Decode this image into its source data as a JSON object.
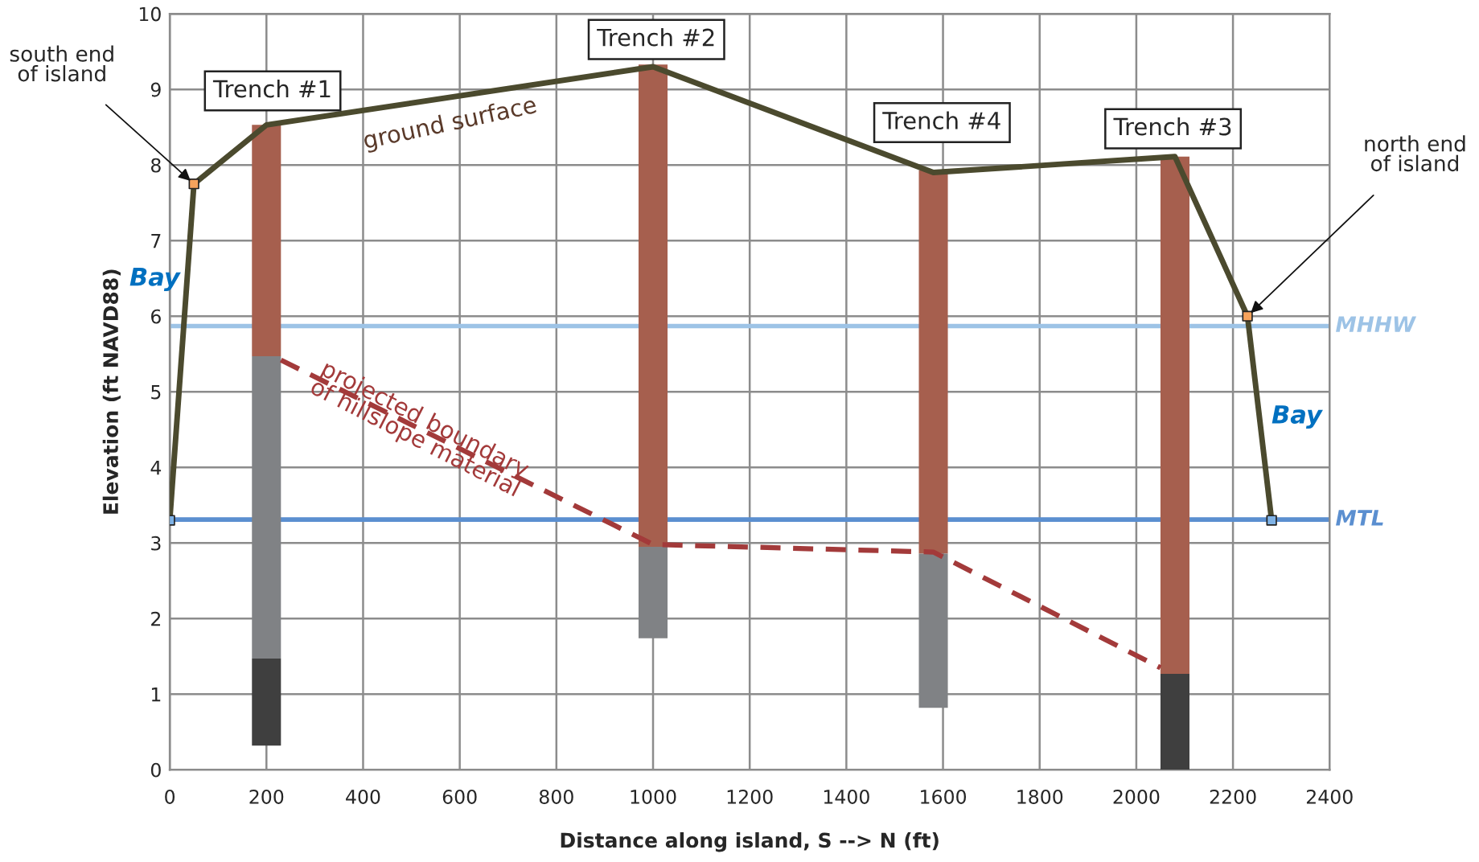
{
  "chart_data": {
    "type": "line",
    "xlabel": "Distance along island, S --> N (ft)",
    "ylabel": "Elevation (ft NAVD88)",
    "xlim": [
      0,
      2400
    ],
    "xticks": [
      0,
      200,
      400,
      600,
      800,
      1000,
      1200,
      1400,
      1600,
      1800,
      2000,
      2200,
      2400
    ],
    "ylim": [
      0,
      10
    ],
    "yticks": [
      0,
      1,
      2,
      3,
      4,
      5,
      6,
      7,
      8,
      9,
      10
    ],
    "grid": true,
    "series": [
      {
        "type": "bar",
        "color": "#a65f4e",
        "x": [
          200,
          1000,
          1580,
          2080
        ],
        "base": [
          5.47,
          2.95,
          2.86,
          1.27
        ],
        "values": [
          3.06,
          6.38,
          5.07,
          6.84
        ]
      },
      {
        "type": "bar",
        "color": "#808285",
        "x": [
          200,
          1000,
          1580
        ],
        "base": [
          1.47,
          1.74,
          0.82
        ],
        "values": [
          4.0,
          1.21,
          2.04
        ]
      },
      {
        "type": "bar",
        "color": "#3f3f3f",
        "x": [
          200,
          2080
        ],
        "base": [
          0.32,
          0
        ],
        "values": [
          1.15,
          1.27
        ]
      },
      {
        "color": "#4b4a2e",
        "line_style": "solid",
        "x": [
          0,
          50,
          200,
          1000,
          1580,
          2080,
          2230,
          2280
        ],
        "values": [
          3.3,
          7.75,
          8.53,
          9.3,
          7.9,
          8.11,
          6.0,
          3.3
        ]
      },
      {
        "color": "#a33a3a",
        "line_style": "dashed",
        "x": [
          230,
          1000,
          1580,
          2050
        ],
        "values": [
          5.42,
          2.98,
          2.88,
          1.35
        ]
      },
      {
        "type": "scatter",
        "marker": "square",
        "x": [
          0,
          50,
          2230,
          2280
        ],
        "values": [
          3.3,
          7.75,
          6.0,
          3.3
        ],
        "colors": [
          "#7fb2e5",
          "#f7a35c",
          "#f7a35c",
          "#7fb2e5"
        ]
      }
    ],
    "ref_lines": [
      {
        "axis": "y",
        "value": 5.87,
        "label": "MHHW",
        "color": "#9dc3e6"
      },
      {
        "axis": "y",
        "value": 3.31,
        "label": "MTL",
        "color": "#5b8fd0"
      }
    ],
    "annotations": [
      "Trench #1",
      "Trench #2",
      "Trench #4",
      "Trench #3",
      "ground surface",
      {
        "text": "projected boundary\nof hillslope material",
        "x": 517,
        "y": 4.5
      },
      {
        "text": "south end\nof island",
        "x": 50,
        "y": 7.75
      },
      {
        "text": "north end\nof island",
        "x": 2230,
        "y": 6.0
      },
      "Bay",
      "Bay"
    ]
  }
}
